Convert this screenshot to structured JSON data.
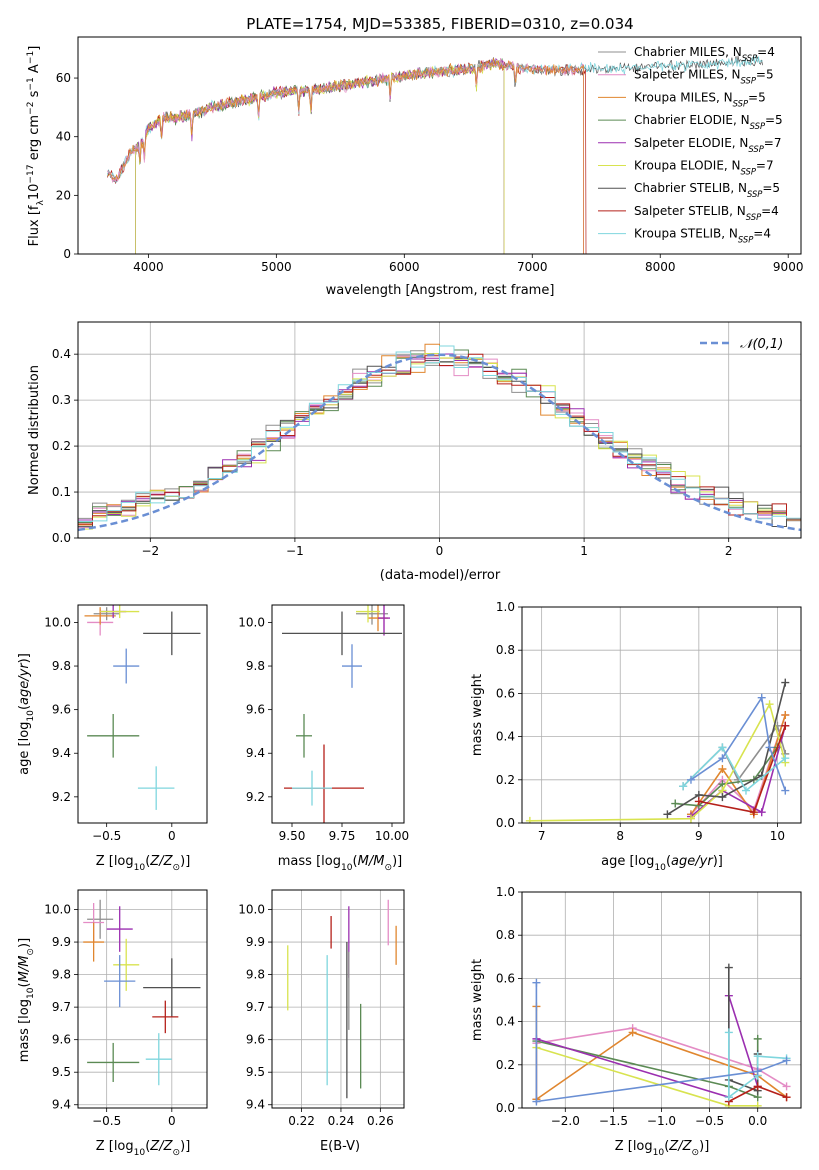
{
  "figure_title": "PLATE=1754, MJD=53385, FIBERID=0310, z=0.034",
  "colors": {
    "Chabrier MILES": "#8f8f8f",
    "Salpeter MILES": "#e48cc5",
    "Kroupa MILES": "#e0862f",
    "Chabrier ELODIE": "#5b8a54",
    "Salpeter ELODIE": "#9b2fb0",
    "Kroupa ELODIE": "#d8e34f",
    "Chabrier STELIB": "#505050",
    "Salpeter STELIB": "#b5201a",
    "Kroupa STELIB": "#7fd6de",
    "gaussian": "#6a8fd4",
    "blue_model": "#6a8fd4"
  },
  "chart_data": [
    {
      "id": "spectrum",
      "type": "line",
      "xlabel": "wavelength [Angstrom, rest frame]",
      "ylabel": "Flux [f_λ10^-17 erg cm^-2 s^-1 A^-1]",
      "xlim": [
        3450,
        9100
      ],
      "ylim": [
        0,
        74
      ],
      "xticks": [
        4000,
        5000,
        6000,
        7000,
        8000,
        9000
      ],
      "yticks": [
        0,
        20,
        40,
        60
      ],
      "legend_position": "upper right",
      "legend": [
        {
          "name": "Chabrier MILES",
          "nssp": "4"
        },
        {
          "name": "Salpeter MILES",
          "nssp": "5"
        },
        {
          "name": "Kroupa MILES",
          "nssp": "5"
        },
        {
          "name": "Chabrier ELODIE",
          "nssp": "5"
        },
        {
          "name": "Salpeter ELODIE",
          "nssp": "7"
        },
        {
          "name": "Kroupa ELODIE",
          "nssp": "7"
        },
        {
          "name": "Chabrier STELIB",
          "nssp": "5"
        },
        {
          "name": "Salpeter STELIB",
          "nssp": "4"
        },
        {
          "name": "Kroupa STELIB",
          "nssp": "4"
        }
      ],
      "continuum": [
        [
          3680,
          28
        ],
        [
          3750,
          25
        ],
        [
          3850,
          34
        ],
        [
          3950,
          38
        ],
        [
          4000,
          43
        ],
        [
          4100,
          46
        ],
        [
          4300,
          47
        ],
        [
          4500,
          50
        ],
        [
          4800,
          53
        ],
        [
          5000,
          55
        ],
        [
          5300,
          56
        ],
        [
          5600,
          58
        ],
        [
          5900,
          60
        ],
        [
          6200,
          62
        ],
        [
          6500,
          63
        ],
        [
          6700,
          65
        ],
        [
          7000,
          63
        ],
        [
          7500,
          63
        ],
        [
          8000,
          64
        ],
        [
          8500,
          65
        ],
        [
          8800,
          66
        ]
      ],
      "model_ranges": [
        {
          "model": "Chabrier MILES",
          "range": [
            3680,
            7400
          ]
        },
        {
          "model": "Salpeter MILES",
          "range": [
            3680,
            7400
          ]
        },
        {
          "model": "Kroupa MILES",
          "range": [
            3680,
            7400
          ]
        },
        {
          "model": "Chabrier ELODIE",
          "range": [
            3900,
            6780
          ]
        },
        {
          "model": "Salpeter ELODIE",
          "range": [
            3900,
            6780
          ]
        },
        {
          "model": "Kroupa ELODIE",
          "range": [
            3900,
            6780
          ]
        },
        {
          "model": "Chabrier STELIB",
          "range": [
            3680,
            8800
          ]
        },
        {
          "model": "Salpeter STELIB",
          "range": [
            3680,
            7420
          ]
        },
        {
          "model": "Kroupa STELIB",
          "range": [
            3680,
            8800
          ]
        }
      ]
    },
    {
      "id": "residuals",
      "type": "histogram",
      "xlabel": "(data-model)/error",
      "ylabel": "Normed distribution",
      "xlim": [
        -2.5,
        2.5
      ],
      "ylim": [
        0,
        0.47
      ],
      "xticks": [
        -2,
        -1,
        0,
        1,
        2
      ],
      "yticks": [
        0.0,
        0.1,
        0.2,
        0.3,
        0.4
      ],
      "bin_width": 0.1,
      "legend": [
        {
          "name": "𝒩(0,1)",
          "style": "dashed"
        }
      ],
      "gaussian": {
        "mean": 0,
        "sigma": 1
      }
    },
    {
      "id": "age_vs_Z",
      "type": "errorbar",
      "xlabel": "Z [log10(Z/Z⊙)]",
      "ylabel": "age [log10(age/yr)]",
      "xlim": [
        -0.72,
        0.27
      ],
      "ylim": [
        9.08,
        10.08
      ],
      "xticks": [
        -0.5,
        0.0
      ],
      "yticks": [
        9.2,
        9.4,
        9.6,
        9.8,
        10.0
      ],
      "points": [
        {
          "model": "Chabrier MILES",
          "x": -0.5,
          "y": 10.04,
          "xerr": 0.1,
          "yerr": 0.03
        },
        {
          "model": "Salpeter MILES",
          "x": -0.55,
          "y": 10.0,
          "xerr": 0.1,
          "yerr": 0.06
        },
        {
          "model": "Kroupa MILES",
          "x": -0.55,
          "y": 10.03,
          "xerr": 0.12,
          "yerr": 0.04
        },
        {
          "model": "Chabrier ELODIE",
          "x": -0.45,
          "y": 9.48,
          "xerr": 0.2,
          "yerr": 0.1
        },
        {
          "model": "Salpeter ELODIE",
          "x": -0.45,
          "y": 10.05,
          "xerr": 0.1,
          "yerr": 0.03
        },
        {
          "model": "Kroupa ELODIE",
          "x": -0.4,
          "y": 10.05,
          "xerr": 0.15,
          "yerr": 0.03
        },
        {
          "model": "Chabrier STELIB",
          "x": 0.0,
          "y": 9.95,
          "xerr": 0.22,
          "yerr": 0.1
        },
        {
          "model": "Kroupa STELIB",
          "x": -0.12,
          "y": 9.24,
          "xerr": 0.14,
          "yerr": 0.1
        },
        {
          "model": "blue",
          "x": -0.35,
          "y": 9.8,
          "xerr": 0.1,
          "yerr": 0.08
        }
      ]
    },
    {
      "id": "age_vs_mass",
      "type": "errorbar",
      "xlabel": "mass [log10(M/M⊙)]",
      "xlim": [
        9.4,
        10.06
      ],
      "ylim": [
        9.08,
        10.08
      ],
      "xticks": [
        9.5,
        9.75,
        10.0
      ],
      "yticks": [
        9.2,
        9.4,
        9.6,
        9.8,
        10.0
      ],
      "points": [
        {
          "model": "Chabrier MILES",
          "x": 9.9,
          "y": 10.04,
          "xerr": 0.08,
          "yerr": 0.05
        },
        {
          "model": "Salpeter MILES",
          "x": 9.96,
          "y": 10.02,
          "xerr": 0.03,
          "yerr": 0.08
        },
        {
          "model": "Kroupa MILES",
          "x": 9.93,
          "y": 10.02,
          "xerr": 0.05,
          "yerr": 0.06
        },
        {
          "model": "Chabrier ELODIE",
          "x": 9.56,
          "y": 9.48,
          "xerr": 0.04,
          "yerr": 0.1
        },
        {
          "model": "Salpeter ELODIE",
          "x": 9.96,
          "y": 10.02,
          "xerr": 0.03,
          "yerr": 0.08
        },
        {
          "model": "Kroupa ELODIE",
          "x": 9.88,
          "y": 10.05,
          "xerr": 0.06,
          "yerr": 0.05
        },
        {
          "model": "Chabrier STELIB",
          "x": 9.75,
          "y": 9.95,
          "xerr": 0.3,
          "yerr": 0.1
        },
        {
          "model": "Salpeter STELIB",
          "x": 9.66,
          "y": 9.24,
          "xerr": 0.2,
          "yerr": 0.2
        },
        {
          "model": "Kroupa STELIB",
          "x": 9.6,
          "y": 9.24,
          "xerr": 0.1,
          "yerr": 0.08
        },
        {
          "model": "blue",
          "x": 9.8,
          "y": 9.8,
          "xerr": 0.05,
          "yerr": 0.1
        }
      ]
    },
    {
      "id": "massweight_vs_age",
      "type": "line",
      "xlabel": "age [log10(age/yr)]",
      "ylabel": "mass weight",
      "xlim": [
        6.75,
        10.3
      ],
      "ylim": [
        0,
        1
      ],
      "xticks": [
        7,
        8,
        9,
        10
      ],
      "yticks": [
        0.0,
        0.2,
        0.4,
        0.6,
        0.8,
        1.0
      ],
      "series": [
        {
          "model": "Chabrier MILES",
          "x": [
            8.8,
            9.3,
            9.5,
            10.0,
            10.1
          ],
          "y": [
            0.17,
            0.35,
            0.2,
            0.45,
            0.32
          ]
        },
        {
          "model": "Salpeter MILES",
          "x": [
            8.9,
            9.3,
            9.7,
            10.1
          ],
          "y": [
            0.04,
            0.2,
            0.06,
            0.5
          ]
        },
        {
          "model": "Kroupa MILES",
          "x": [
            8.9,
            9.3,
            9.7,
            10.1
          ],
          "y": [
            0.04,
            0.25,
            0.04,
            0.5
          ]
        },
        {
          "model": "Chabrier ELODIE",
          "x": [
            8.7,
            9.0,
            9.3,
            9.7,
            10.0
          ],
          "y": [
            0.09,
            0.08,
            0.18,
            0.2,
            0.35
          ]
        },
        {
          "model": "Salpeter ELODIE",
          "x": [
            8.9,
            9.3,
            9.8,
            10.1
          ],
          "y": [
            0.03,
            0.15,
            0.05,
            0.45
          ]
        },
        {
          "model": "Kroupa ELODIE",
          "x": [
            6.85,
            8.9,
            9.3,
            9.9,
            10.1
          ],
          "y": [
            0.01,
            0.02,
            0.15,
            0.55,
            0.28
          ]
        },
        {
          "model": "Chabrier STELIB",
          "x": [
            8.6,
            9.0,
            9.3,
            9.8,
            10.1
          ],
          "y": [
            0.04,
            0.13,
            0.12,
            0.22,
            0.65
          ]
        },
        {
          "model": "Salpeter STELIB",
          "x": [
            9.0,
            9.7,
            10.1
          ],
          "y": [
            0.1,
            0.05,
            0.45
          ]
        },
        {
          "model": "Kroupa STELIB",
          "x": [
            8.8,
            9.3,
            9.6,
            10.1
          ],
          "y": [
            0.17,
            0.35,
            0.15,
            0.3
          ]
        },
        {
          "model": "blue",
          "x": [
            8.9,
            9.3,
            9.8,
            9.9,
            10.1
          ],
          "y": [
            0.2,
            0.3,
            0.58,
            0.35,
            0.15
          ]
        }
      ]
    },
    {
      "id": "mass_vs_Z",
      "type": "errorbar",
      "xlabel": "Z [log10(Z/Z⊙)]",
      "ylabel": "mass [log10(M/M⊙)]",
      "xlim": [
        -0.72,
        0.27
      ],
      "ylim": [
        9.39,
        10.06
      ],
      "xticks": [
        -0.5,
        0.0
      ],
      "yticks": [
        9.4,
        9.5,
        9.6,
        9.7,
        9.8,
        9.9,
        10.0
      ],
      "points": [
        {
          "model": "Chabrier MILES",
          "x": -0.55,
          "y": 9.97,
          "xerr": 0.1,
          "yerr": 0.06
        },
        {
          "model": "Salpeter MILES",
          "x": -0.6,
          "y": 9.96,
          "xerr": 0.08,
          "yerr": 0.06
        },
        {
          "model": "Kroupa MILES",
          "x": -0.6,
          "y": 9.9,
          "xerr": 0.08,
          "yerr": 0.06
        },
        {
          "model": "Chabrier ELODIE",
          "x": -0.45,
          "y": 9.53,
          "xerr": 0.2,
          "yerr": 0.06
        },
        {
          "model": "Salpeter ELODIE",
          "x": -0.4,
          "y": 9.94,
          "xerr": 0.1,
          "yerr": 0.07
        },
        {
          "model": "Kroupa ELODIE",
          "x": -0.35,
          "y": 9.83,
          "xerr": 0.1,
          "yerr": 0.08
        },
        {
          "model": "Chabrier STELIB",
          "x": 0.0,
          "y": 9.76,
          "xerr": 0.22,
          "yerr": 0.09
        },
        {
          "model": "Salpeter STELIB",
          "x": -0.05,
          "y": 9.67,
          "xerr": 0.1,
          "yerr": 0.05
        },
        {
          "model": "Kroupa STELIB",
          "x": -0.1,
          "y": 9.54,
          "xerr": 0.1,
          "yerr": 0.08
        },
        {
          "model": "blue",
          "x": -0.4,
          "y": 9.78,
          "xerr": 0.12,
          "yerr": 0.08
        }
      ]
    },
    {
      "id": "mass_vs_ebv",
      "type": "errorbar",
      "xlabel": "E(B-V)",
      "xlim": [
        0.205,
        0.272
      ],
      "ylim": [
        9.39,
        10.06
      ],
      "xticks": [
        0.22,
        0.24,
        0.26
      ],
      "yticks": [
        9.4,
        9.5,
        9.6,
        9.7,
        9.8,
        9.9,
        10.0
      ],
      "points": [
        {
          "model": "Salpeter MILES",
          "x": 0.264,
          "y": 9.96,
          "xerr": 0,
          "yerr": 0.07
        },
        {
          "model": "Kroupa MILES",
          "x": 0.268,
          "y": 9.89,
          "xerr": 0,
          "yerr": 0.06
        },
        {
          "model": "Chabrier ELODIE",
          "x": 0.25,
          "y": 9.58,
          "xerr": 0,
          "yerr": 0.13
        },
        {
          "model": "Salpeter ELODIE",
          "x": 0.244,
          "y": 9.9,
          "xerr": 0,
          "yerr": 0.11
        },
        {
          "model": "Kroupa ELODIE",
          "x": 0.213,
          "y": 9.79,
          "xerr": 0,
          "yerr": 0.1
        },
        {
          "model": "Chabrier STELIB",
          "x": 0.243,
          "y": 9.66,
          "xerr": 0,
          "yerr": 0.24
        },
        {
          "model": "Salpeter STELIB",
          "x": 0.235,
          "y": 9.93,
          "xerr": 0,
          "yerr": 0.05
        },
        {
          "model": "Kroupa STELIB",
          "x": 0.233,
          "y": 9.66,
          "xerr": 0,
          "yerr": 0.2
        },
        {
          "model": "Chabrier MILES",
          "x": 0.244,
          "y": 9.75,
          "xerr": 0,
          "yerr": 0.12
        }
      ]
    },
    {
      "id": "massweight_vs_Z",
      "type": "line",
      "xlabel": "Z [log10(Z/Z⊙)]",
      "ylabel": "mass weight",
      "xlim": [
        -2.45,
        0.45
      ],
      "ylim": [
        0,
        1
      ],
      "xticks": [
        -2.0,
        -1.5,
        -1.0,
        -0.5,
        0.0
      ],
      "yticks": [
        0.0,
        0.2,
        0.4,
        0.6,
        0.8,
        1.0
      ],
      "series": [
        {
          "model": "Salpeter MILES",
          "x": [
            -2.3,
            -2.3,
            -1.3,
            0.0,
            0.3
          ],
          "y": [
            0.04,
            0.3,
            0.37,
            0.18,
            0.1
          ]
        },
        {
          "model": "Kroupa MILES",
          "x": [
            -2.3,
            -2.3,
            -1.3,
            0.0,
            0.3
          ],
          "y": [
            0.47,
            0.04,
            0.35,
            0.15,
            0.05
          ]
        },
        {
          "model": "Chabrier ELODIE",
          "x": [
            -2.3,
            -0.3,
            0.0,
            0.0
          ],
          "y": [
            0.31,
            0.1,
            0.05,
            0.32
          ]
        },
        {
          "model": "Salpeter ELODIE",
          "x": [
            -2.3,
            -0.3,
            -0.3,
            0.0
          ],
          "y": [
            0.32,
            0.05,
            0.52,
            0.1
          ]
        },
        {
          "model": "Kroupa ELODIE",
          "x": [
            -2.3,
            -0.3,
            0.0
          ],
          "y": [
            0.28,
            0.01,
            0.01
          ]
        },
        {
          "model": "Chabrier STELIB",
          "x": [
            -0.3,
            -0.3,
            0.0,
            0.0
          ],
          "y": [
            0.65,
            0.13,
            0.08,
            0.25
          ]
        },
        {
          "model": "Salpeter STELIB",
          "x": [
            -0.3,
            0.0,
            0.3
          ],
          "y": [
            0.03,
            0.1,
            0.05
          ]
        },
        {
          "model": "Kroupa STELIB",
          "x": [
            -0.3,
            -0.3,
            0.0,
            0.0,
            0.3
          ],
          "y": [
            0.35,
            0.05,
            0.15,
            0.24,
            0.23
          ]
        },
        {
          "model": "blue",
          "x": [
            -2.3,
            -2.3,
            0.0,
            0.3
          ],
          "y": [
            0.58,
            0.03,
            0.17,
            0.22
          ]
        }
      ]
    }
  ]
}
